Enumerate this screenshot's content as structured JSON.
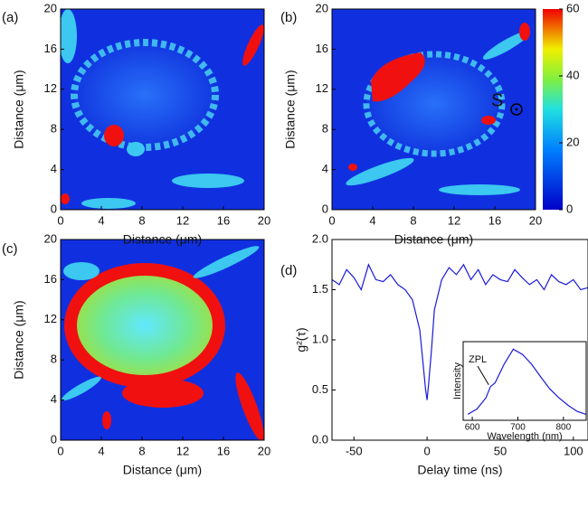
{
  "chart_data": [
    {
      "type": "heatmap",
      "panel_label": "(a)",
      "xlabel": "Distance (μm)",
      "ylabel": "Distance (μm)",
      "xlim": [
        0,
        20
      ],
      "ylim": [
        0,
        20
      ],
      "xticks": [
        0,
        4,
        8,
        12,
        16,
        20
      ],
      "yticks": [
        0,
        4,
        8,
        12,
        16,
        20
      ]
    },
    {
      "type": "heatmap",
      "panel_label": "(b)",
      "xlabel": "Distance (μm)",
      "ylabel": "Distance (μm)",
      "xlim": [
        0,
        20
      ],
      "ylim": [
        0,
        20
      ],
      "xticks": [
        0,
        4,
        8,
        12,
        16,
        20
      ],
      "yticks": [
        0,
        4,
        8,
        12,
        16,
        20
      ],
      "annotation": "S",
      "colorbar": {
        "lim": [
          0,
          60
        ],
        "ticks": [
          0,
          20,
          40,
          60
        ]
      }
    },
    {
      "type": "heatmap",
      "panel_label": "(c)",
      "xlabel": "Distance (μm)",
      "ylabel": "Distance (μm)",
      "xlim": [
        0,
        20
      ],
      "ylim": [
        0,
        20
      ],
      "xticks": [
        0,
        4,
        8,
        12,
        16,
        20
      ],
      "yticks": [
        0,
        4,
        8,
        12,
        16,
        20
      ]
    },
    {
      "type": "line",
      "panel_label": "(d)",
      "xlabel": "Delay time (ns)",
      "ylabel": "g²(τ)",
      "xlim": [
        -65,
        110
      ],
      "ylim": [
        0,
        2
      ],
      "xticks": [
        -50,
        0,
        50,
        100
      ],
      "yticks": [
        {
          "value": 0,
          "label": "0.0"
        },
        0.5,
        {
          "value": 1,
          "label": "1.0"
        },
        1.5,
        {
          "value": 2,
          "label": "2.0"
        }
      ],
      "color": "#1a1adc",
      "x": [
        -65,
        -60,
        -55,
        -50,
        -45,
        -40,
        -35,
        -30,
        -25,
        -20,
        -15,
        -10,
        -5,
        -3,
        -1,
        0,
        1,
        3,
        5,
        10,
        15,
        20,
        25,
        30,
        35,
        40,
        45,
        50,
        55,
        60,
        65,
        70,
        75,
        80,
        85,
        90,
        95,
        100,
        105,
        110
      ],
      "values": [
        1.6,
        1.55,
        1.7,
        1.62,
        1.5,
        1.75,
        1.6,
        1.58,
        1.65,
        1.55,
        1.5,
        1.4,
        1.1,
        0.8,
        0.5,
        0.4,
        0.55,
        0.9,
        1.3,
        1.6,
        1.72,
        1.65,
        1.75,
        1.6,
        1.7,
        1.55,
        1.65,
        1.6,
        1.58,
        1.7,
        1.62,
        1.55,
        1.6,
        1.5,
        1.65,
        1.58,
        1.55,
        1.6,
        1.5,
        1.52
      ]
    },
    {
      "type": "line",
      "xlabel": "Wavelength (nm)",
      "ylabel": "Intensity",
      "xlim": [
        580,
        850
      ],
      "ylim": [
        0,
        1.05
      ],
      "xticks": [
        600,
        700,
        800
      ],
      "color": "#1a1adc",
      "annotation": "ZPL",
      "x": [
        590,
        610,
        630,
        640,
        650,
        670,
        690,
        710,
        730,
        750,
        770,
        790,
        810,
        830,
        850
      ],
      "values": [
        0.08,
        0.15,
        0.3,
        0.45,
        0.5,
        0.75,
        0.95,
        0.88,
        0.75,
        0.58,
        0.42,
        0.3,
        0.2,
        0.12,
        0.08
      ]
    }
  ]
}
